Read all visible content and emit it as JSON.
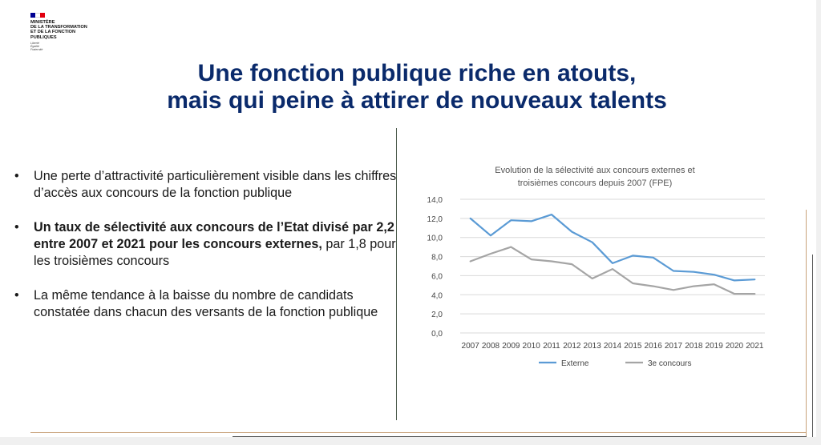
{
  "logo": {
    "ministry_lines": [
      "Ministère",
      "de la transformation",
      "et de la fonction",
      "publiques"
    ],
    "motto": [
      "Liberté",
      "Égalité",
      "Fraternité"
    ],
    "flag_colors": [
      "#000091",
      "#ffffff",
      "#e1000f"
    ]
  },
  "title": {
    "line1": "Une fonction publique riche en atouts,",
    "line2": "mais qui peine à attirer de nouveaux talents"
  },
  "bullets": [
    {
      "marker": "•",
      "bold": "",
      "text": "Une perte d’attractivité particulièrement visible dans les chiffres d’accès aux concours de la fonction publique"
    },
    {
      "marker": "•",
      "bold": "Un taux de sélectivité aux concours de l’Etat divisé par 2,2 entre 2007 et 2021 pour les concours externes,",
      "text": " par 1,8 pour les troisièmes concours"
    },
    {
      "marker": "•",
      "bold": "",
      "text": "La même tendance à la baisse du nombre de candidats constatée dans chacun des versants de la fonction publique"
    }
  ],
  "chart_data": {
    "type": "line",
    "title_lines": [
      "Evolution de la sélectivité aux concours externes et",
      "troisièmes concours depuis 2007 (FPE)"
    ],
    "categories": [
      "2007",
      "2008",
      "2009",
      "2010",
      "2011",
      "2012",
      "2013",
      "2014",
      "2015",
      "2016",
      "2017",
      "2018",
      "2019",
      "2020",
      "2021"
    ],
    "series": [
      {
        "name": "Externe",
        "color": "#5b9bd5",
        "values": [
          12.0,
          10.2,
          11.8,
          11.7,
          12.4,
          10.6,
          9.5,
          7.3,
          8.1,
          7.9,
          6.5,
          6.4,
          6.1,
          5.5,
          5.6
        ]
      },
      {
        "name": "3e concours",
        "color": "#a5a5a5",
        "values": [
          7.5,
          8.3,
          9.0,
          7.7,
          7.5,
          7.2,
          5.7,
          6.7,
          5.2,
          4.9,
          4.5,
          4.9,
          5.1,
          4.1,
          4.1
        ]
      }
    ],
    "yticks": [
      "0,0",
      "2,0",
      "4,0",
      "6,0",
      "8,0",
      "10,0",
      "12,0",
      "14,0"
    ],
    "ylim": [
      0,
      14
    ],
    "grid": true,
    "legend": "bottom"
  }
}
